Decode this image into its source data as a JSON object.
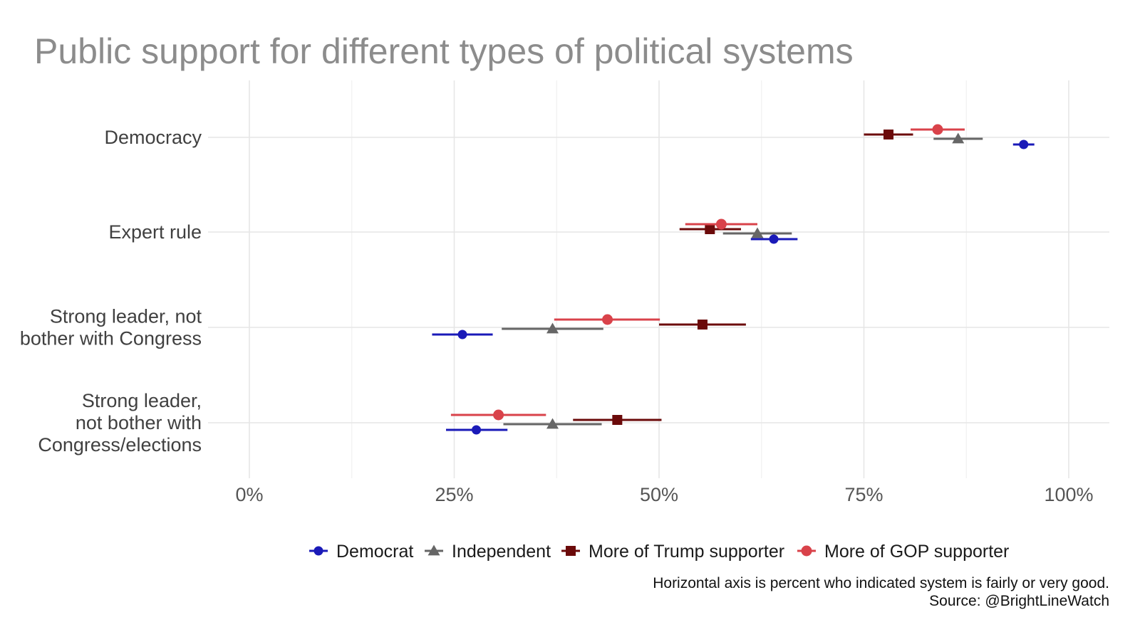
{
  "chart_data": {
    "type": "scatter",
    "title": "Public support for different types of political systems",
    "xlabel": "",
    "ylabel": "",
    "xlim": [
      0,
      1.05
    ],
    "x_ticks": [
      0,
      0.25,
      0.5,
      0.75,
      1.0
    ],
    "x_tick_labels": [
      "0%",
      "25%",
      "50%",
      "75%",
      "100%"
    ],
    "grid": true,
    "legend_position": "bottom",
    "categories": [
      "Democracy",
      "Expert rule",
      "Strong leader, not bother with Congress",
      "Strong leader, not bother with Congress/elections"
    ],
    "category_lines": [
      [
        "Democracy"
      ],
      [
        "Expert rule"
      ],
      [
        "Strong leader, not",
        "bother with Congress"
      ],
      [
        "Strong leader,",
        "not bother with",
        "Congress/elections"
      ]
    ],
    "series": [
      {
        "name": "Democrat",
        "color": "#1a1ab8",
        "marker": "circle",
        "values": [
          0.945,
          0.64,
          0.26,
          0.277
        ],
        "ci_low": [
          0.932,
          0.612,
          0.223,
          0.24
        ],
        "ci_high": [
          0.958,
          0.669,
          0.297,
          0.315
        ]
      },
      {
        "name": "Independent",
        "color": "#666666",
        "marker": "triangle",
        "values": [
          0.865,
          0.62,
          0.37,
          0.37
        ],
        "ci_low": [
          0.835,
          0.578,
          0.308,
          0.31
        ],
        "ci_high": [
          0.895,
          0.662,
          0.432,
          0.43
        ]
      },
      {
        "name": "More of Trump supporter",
        "color": "#6b0a0a",
        "marker": "square",
        "values": [
          0.78,
          0.562,
          0.553,
          0.449
        ],
        "ci_low": [
          0.75,
          0.525,
          0.5,
          0.395
        ],
        "ci_high": [
          0.81,
          0.6,
          0.606,
          0.503
        ]
      },
      {
        "name": "More of GOP supporter",
        "color": "#d9424a",
        "marker": "circle",
        "values": [
          0.84,
          0.576,
          0.437,
          0.304
        ],
        "ci_low": [
          0.807,
          0.532,
          0.372,
          0.246
        ],
        "ci_high": [
          0.873,
          0.62,
          0.501,
          0.362
        ]
      }
    ],
    "caption": [
      "Horizontal axis is percent who indicated system is fairly or very good.",
      "Source: @BrightLineWatch"
    ]
  }
}
